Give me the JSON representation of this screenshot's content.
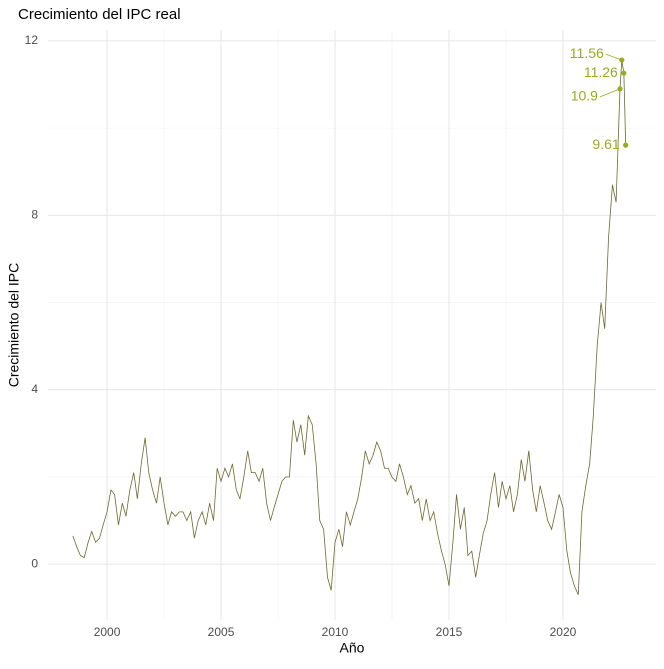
{
  "chart_data": {
    "type": "line",
    "title": "Crecimiento del IPC real",
    "x_label": "Año",
    "y_label": "Crecimiento del IPC",
    "x": [
      1998.5,
      1998.67,
      1998.83,
      1999.0,
      1999.17,
      1999.33,
      1999.5,
      1999.67,
      1999.83,
      2000.0,
      2000.17,
      2000.33,
      2000.5,
      2000.67,
      2000.83,
      2001.0,
      2001.17,
      2001.33,
      2001.5,
      2001.67,
      2001.83,
      2002.0,
      2002.17,
      2002.33,
      2002.5,
      2002.67,
      2002.83,
      2003.0,
      2003.17,
      2003.33,
      2003.5,
      2003.67,
      2003.83,
      2004.0,
      2004.17,
      2004.33,
      2004.5,
      2004.67,
      2004.83,
      2005.0,
      2005.17,
      2005.33,
      2005.5,
      2005.67,
      2005.83,
      2006.0,
      2006.17,
      2006.33,
      2006.5,
      2006.67,
      2006.83,
      2007.0,
      2007.17,
      2007.33,
      2007.5,
      2007.67,
      2007.83,
      2008.0,
      2008.17,
      2008.33,
      2008.5,
      2008.67,
      2008.83,
      2009.0,
      2009.17,
      2009.33,
      2009.5,
      2009.67,
      2009.83,
      2010.0,
      2010.17,
      2010.33,
      2010.5,
      2010.67,
      2010.83,
      2011.0,
      2011.17,
      2011.33,
      2011.5,
      2011.67,
      2011.83,
      2012.0,
      2012.17,
      2012.33,
      2012.5,
      2012.67,
      2012.83,
      2013.0,
      2013.17,
      2013.33,
      2013.5,
      2013.67,
      2013.83,
      2014.0,
      2014.17,
      2014.33,
      2014.5,
      2014.67,
      2014.83,
      2015.0,
      2015.17,
      2015.33,
      2015.5,
      2015.67,
      2015.83,
      2016.0,
      2016.17,
      2016.33,
      2016.5,
      2016.67,
      2016.83,
      2017.0,
      2017.17,
      2017.33,
      2017.5,
      2017.67,
      2017.83,
      2018.0,
      2018.17,
      2018.33,
      2018.5,
      2018.67,
      2018.83,
      2019.0,
      2019.17,
      2019.33,
      2019.5,
      2019.67,
      2019.83,
      2020.0,
      2020.17,
      2020.33,
      2020.5,
      2020.67,
      2020.83,
      2021.0,
      2021.17,
      2021.33,
      2021.5,
      2021.67,
      2021.83,
      2022.0,
      2022.17,
      2022.33,
      2022.5,
      2022.58,
      2022.67,
      2022.75
    ],
    "values": [
      0.65,
      0.4,
      0.2,
      0.15,
      0.5,
      0.75,
      0.5,
      0.6,
      0.9,
      1.2,
      1.7,
      1.6,
      0.9,
      1.4,
      1.1,
      1.7,
      2.1,
      1.5,
      2.3,
      2.9,
      2.1,
      1.7,
      1.4,
      2.0,
      1.4,
      0.9,
      1.2,
      1.1,
      1.2,
      1.2,
      1.0,
      1.2,
      0.6,
      1.0,
      1.2,
      0.9,
      1.4,
      1.0,
      2.2,
      1.9,
      2.2,
      2.0,
      2.3,
      1.7,
      1.5,
      2.0,
      2.6,
      2.1,
      2.1,
      1.9,
      2.2,
      1.4,
      1.0,
      1.3,
      1.6,
      1.9,
      2.0,
      2.0,
      3.3,
      2.8,
      3.2,
      2.5,
      3.4,
      3.2,
      2.3,
      1.0,
      0.8,
      -0.3,
      -0.6,
      0.5,
      0.8,
      0.4,
      1.2,
      0.9,
      1.2,
      1.5,
      2.0,
      2.6,
      2.3,
      2.5,
      2.8,
      2.6,
      2.2,
      2.2,
      2.0,
      1.9,
      2.3,
      2.0,
      1.6,
      1.8,
      1.4,
      1.5,
      1.0,
      1.5,
      1.0,
      1.2,
      0.7,
      0.3,
      0.0,
      -0.5,
      0.5,
      1.6,
      0.8,
      1.3,
      0.2,
      0.3,
      -0.3,
      0.2,
      0.7,
      1.0,
      1.6,
      2.1,
      1.3,
      1.9,
      1.5,
      1.8,
      1.2,
      1.6,
      2.4,
      1.9,
      2.6,
      1.7,
      1.2,
      1.8,
      1.4,
      1.0,
      0.8,
      1.2,
      1.6,
      1.3,
      0.3,
      -0.2,
      -0.5,
      -0.7,
      1.2,
      1.8,
      2.3,
      3.4,
      5.0,
      6.0,
      5.4,
      7.5,
      8.7,
      8.3,
      10.9,
      11.56,
      11.26,
      9.61
    ],
    "color": "#6b6a2c",
    "point_color": "#9aab1b",
    "xlim": [
      1997.41,
      2024.08
    ],
    "xticks": [
      2000,
      2005,
      2010,
      2015,
      2020
    ],
    "ylim": [
      -1.28,
      12.25
    ],
    "yticks": [
      0,
      4,
      8,
      12
    ],
    "grid": true
  }
}
